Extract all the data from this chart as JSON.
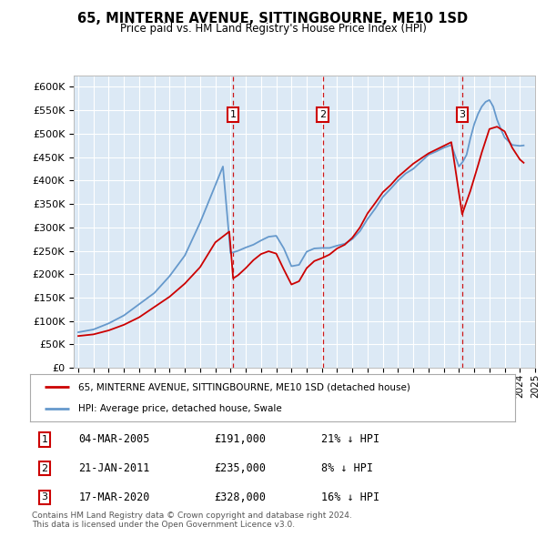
{
  "title": "65, MINTERNE AVENUE, SITTINGBOURNE, ME10 1SD",
  "subtitle": "Price paid vs. HM Land Registry's House Price Index (HPI)",
  "ylim": [
    0,
    625000
  ],
  "yticks": [
    0,
    50000,
    100000,
    150000,
    200000,
    250000,
    300000,
    350000,
    400000,
    450000,
    500000,
    550000,
    600000
  ],
  "background_color": "#ffffff",
  "plot_bg_color": "#dce9f5",
  "grid_color": "#ffffff",
  "sale_color": "#cc0000",
  "hpi_color": "#6699cc",
  "sale_legend": "65, MINTERNE AVENUE, SITTINGBOURNE, ME10 1SD (detached house)",
  "hpi_legend": "HPI: Average price, detached house, Swale",
  "transactions": [
    {
      "num": 1,
      "date": "04-MAR-2005",
      "price": 191000,
      "pct": "21%",
      "dir": "↓",
      "x_year": 2005.17
    },
    {
      "num": 2,
      "date": "21-JAN-2011",
      "price": 235000,
      "pct": "8%",
      "dir": "↓",
      "x_year": 2011.05
    },
    {
      "num": 3,
      "date": "17-MAR-2020",
      "price": 328000,
      "pct": "16%",
      "dir": "↓",
      "x_year": 2020.21
    }
  ],
  "footnote": "Contains HM Land Registry data © Crown copyright and database right 2024.\nThis data is licensed under the Open Government Licence v3.0.",
  "xlim_left": 1994.7,
  "xlim_right": 2024.6
}
